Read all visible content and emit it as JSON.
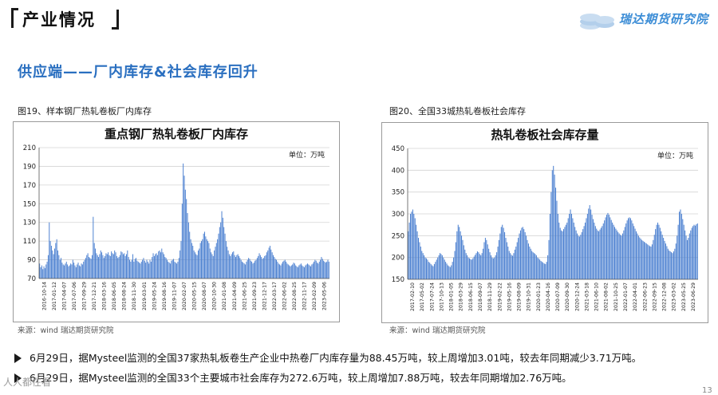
{
  "header": {
    "title": "产业情况",
    "logo_text": "瑞达期货研究院",
    "logo_icon": "coin-stack-icon"
  },
  "section": {
    "heading": "供应端——厂内库存&社会库存回升"
  },
  "figures": [
    {
      "caption": "图19、样本钢厂热轧卷板厂内库存",
      "source": "来源：wind   瑞达期货研究院"
    },
    {
      "caption": "图20、全国33城热轧卷板社会库存",
      "source": "来源：wind   瑞达期货研究院"
    }
  ],
  "chart_data": [
    {
      "type": "bar",
      "title": "重点钢厂热轧卷板厂内库存",
      "unit_label": "单位：万吨",
      "ylim": [
        70,
        210
      ],
      "yticks": [
        70,
        90,
        110,
        130,
        150,
        170,
        190,
        210
      ],
      "grid": true,
      "color": "#4a7fd0",
      "x_tick_labels": [
        "2016-10-14",
        "2017-01-12",
        "2017-04-07",
        "2017-07-06",
        "2017-09-29",
        "2017-12-21",
        "2018-03-16",
        "2018-06-05",
        "2018-08-24",
        "2018-11-30",
        "2019-03-01",
        "2019-05-24",
        "2019-08-16",
        "2019-11-07",
        "2020-02-07",
        "2020-05-15",
        "2020-08-07",
        "2020-10-30",
        "2021-01-08",
        "2021-04-09",
        "2021-06-25",
        "2021-09-23",
        "2021-12-17",
        "2022-03-17",
        "2022-06-02",
        "2022-08-25",
        "2022-11-17",
        "2023-02-09",
        "2023-05-06"
      ],
      "values": [
        86,
        82,
        84,
        80,
        83,
        81,
        85,
        88,
        95,
        130,
        110,
        105,
        100,
        96,
        102,
        108,
        112,
        100,
        95,
        90,
        92,
        87,
        85,
        84,
        86,
        88,
        85,
        83,
        84,
        86,
        85,
        90,
        87,
        84,
        82,
        85,
        87,
        84,
        83,
        86,
        85,
        88,
        90,
        92,
        95,
        97,
        93,
        92,
        91,
        95,
        136,
        108,
        102,
        97,
        95,
        93,
        96,
        100,
        98,
        95,
        92,
        94,
        97,
        96,
        98,
        95,
        94,
        99,
        97,
        96,
        100,
        98,
        94,
        92,
        93,
        95,
        99,
        98,
        96,
        97,
        94,
        96,
        100,
        93,
        90,
        88,
        90,
        96,
        88,
        91,
        92,
        89,
        88,
        87,
        86,
        88,
        90,
        92,
        89,
        87,
        90,
        88,
        86,
        90,
        88,
        93,
        97,
        94,
        96,
        97,
        95,
        99,
        100,
        98,
        102,
        98,
        96,
        93,
        92,
        90,
        88,
        87,
        86,
        89,
        90,
        91,
        88,
        87,
        86,
        88,
        92,
        100,
        110,
        150,
        193,
        180,
        165,
        155,
        140,
        130,
        120,
        112,
        108,
        105,
        100,
        98,
        96,
        95,
        100,
        102,
        108,
        110,
        112,
        118,
        120,
        115,
        112,
        110,
        108,
        102,
        98,
        96,
        94,
        100,
        104,
        108,
        112,
        118,
        125,
        130,
        142,
        135,
        125,
        118,
        110,
        104,
        100,
        96,
        94,
        96,
        98,
        99,
        95,
        93,
        95,
        96,
        94,
        92,
        90,
        88,
        87,
        86,
        85,
        88,
        90,
        92,
        91,
        89,
        88,
        86,
        87,
        89,
        90,
        92,
        94,
        97,
        95,
        93,
        91,
        92,
        94,
        95,
        98,
        100,
        103,
        105,
        101,
        98,
        95,
        93,
        91,
        90,
        88,
        86,
        85,
        84,
        86,
        88,
        89,
        90,
        88,
        86,
        85,
        84,
        83,
        84,
        85,
        87,
        86,
        84,
        83,
        82,
        84,
        85,
        86,
        84,
        83,
        82,
        84,
        85,
        86,
        85,
        84,
        83,
        85,
        86,
        88,
        90,
        89,
        87,
        86,
        88,
        90,
        93,
        91,
        89,
        88,
        87,
        88,
        90,
        88
      ]
    },
    {
      "type": "bar",
      "title": "热轧卷板社会库存量",
      "unit_label": "单位：万吨",
      "ylim": [
        150,
        450
      ],
      "yticks": [
        150,
        200,
        250,
        300,
        350,
        400,
        450
      ],
      "grid": true,
      "color": "#4a7fd0",
      "x_tick_labels": [
        "2017-02-10",
        "2017-05-02",
        "2017-07-24",
        "2017-10-13",
        "2018-01-05",
        "2018-03-29",
        "2018-06-15",
        "2018-09-07",
        "2018-11-29",
        "2019-02-22",
        "2019-05-16",
        "2019-08-09",
        "2019-10-31",
        "2020-01-23",
        "2020-04-16",
        "2020-07-09",
        "2020-09-30",
        "2020-12-24",
        "2021-03-18",
        "2021-06-10",
        "2021-08-02",
        "2021-10-25",
        "2022-01-07",
        "2022-04-01",
        "2022-06-23",
        "2022-09-15",
        "2022-12-08",
        "2023-03-02",
        "2023-05-25",
        "2023-06-29"
      ],
      "values": [
        260,
        280,
        300,
        305,
        310,
        300,
        290,
        275,
        260,
        245,
        235,
        225,
        215,
        210,
        205,
        200,
        198,
        195,
        190,
        188,
        185,
        182,
        180,
        185,
        190,
        195,
        200,
        205,
        210,
        208,
        205,
        200,
        195,
        190,
        186,
        182,
        180,
        178,
        182,
        190,
        200,
        215,
        235,
        260,
        275,
        270,
        260,
        250,
        240,
        228,
        218,
        210,
        205,
        200,
        198,
        196,
        195,
        198,
        202,
        206,
        210,
        214,
        212,
        208,
        205,
        210,
        220,
        235,
        245,
        240,
        230,
        220,
        212,
        205,
        200,
        198,
        200,
        205,
        212,
        225,
        240,
        255,
        270,
        275,
        268,
        258,
        245,
        235,
        225,
        215,
        210,
        206,
        204,
        210,
        218,
        225,
        235,
        245,
        255,
        262,
        268,
        270,
        265,
        258,
        250,
        240,
        232,
        225,
        220,
        215,
        212,
        210,
        208,
        205,
        200,
        198,
        195,
        192,
        190,
        188,
        186,
        185,
        190,
        205,
        240,
        300,
        350,
        400,
        410,
        390,
        360,
        330,
        300,
        280,
        268,
        262,
        260,
        265,
        270,
        275,
        280,
        290,
        300,
        310,
        300,
        290,
        280,
        270,
        262,
        255,
        250,
        248,
        252,
        258,
        265,
        272,
        280,
        290,
        300,
        312,
        320,
        310,
        298,
        288,
        280,
        272,
        266,
        262,
        260,
        264,
        268,
        272,
        278,
        285,
        292,
        298,
        302,
        298,
        292,
        286,
        280,
        275,
        270,
        266,
        262,
        258,
        255,
        252,
        250,
        255,
        262,
        270,
        278,
        285,
        290,
        292,
        290,
        285,
        278,
        272,
        266,
        260,
        255,
        250,
        246,
        243,
        240,
        238,
        236,
        234,
        232,
        230,
        228,
        226,
        225,
        230,
        240,
        252,
        265,
        275,
        280,
        275,
        268,
        260,
        252,
        245,
        238,
        232,
        226,
        220,
        216,
        214,
        212,
        210,
        214,
        220,
        232,
        250,
        275,
        305,
        310,
        300,
        288,
        275,
        262,
        250,
        240,
        245,
        255,
        262,
        268,
        272,
        275,
        273,
        276,
        278
      ]
    }
  ],
  "bullets": [
    "6月29日，据Mysteel监测的全国37家热轧板卷生产企业中热卷厂内库存量为88.45万吨，较上周增加3.01吨，较去年同期减少3.71万吨。",
    "6月29日，据Mysteel监测的全国33个主要城市社会库存为272.6万吨，较上周增加7.88万吨，较去年同期增加2.76万吨。"
  ],
  "watermark": "人人都在看",
  "page_number": "13"
}
